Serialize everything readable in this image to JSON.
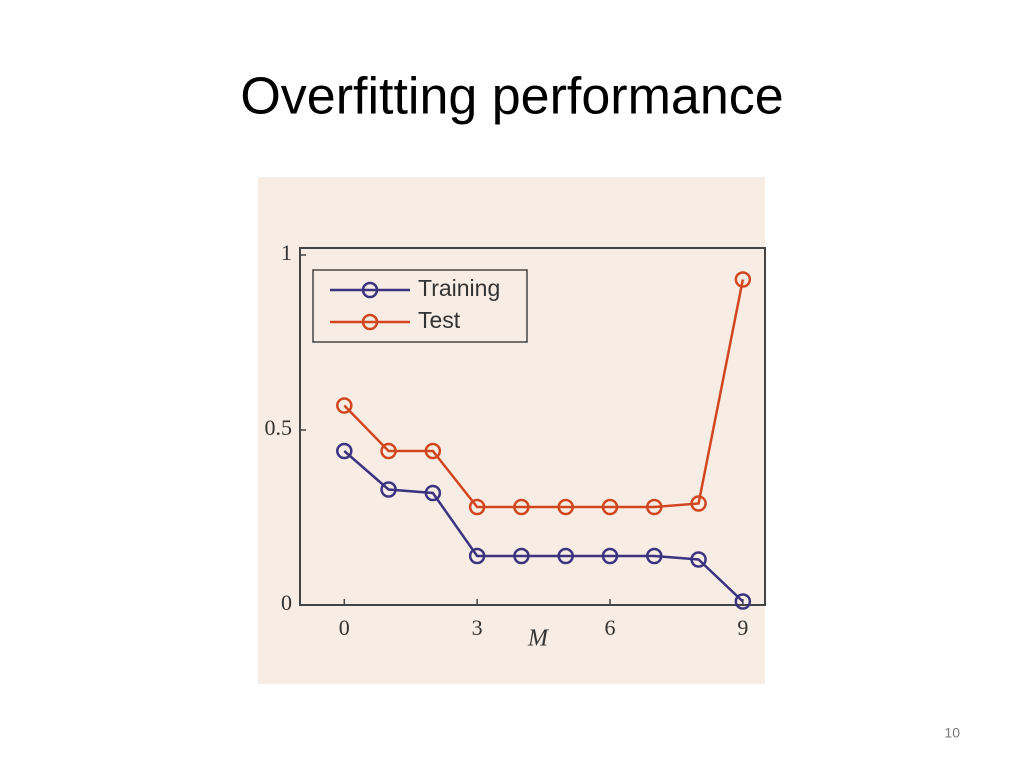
{
  "slide": {
    "title": "Overfitting performance",
    "page_number": "10"
  },
  "chart_data": {
    "type": "line",
    "x_label": "M",
    "x": [
      0,
      1,
      2,
      3,
      4,
      5,
      6,
      7,
      8,
      9
    ],
    "series": [
      {
        "name": "Training",
        "color": "#3b3380",
        "values": [
          0.44,
          0.33,
          0.32,
          0.14,
          0.14,
          0.14,
          0.14,
          0.14,
          0.13,
          0.01
        ]
      },
      {
        "name": "Test",
        "color": "#d2461f",
        "values": [
          0.57,
          0.44,
          0.44,
          0.28,
          0.28,
          0.28,
          0.28,
          0.28,
          0.29,
          0.93
        ]
      }
    ],
    "xlim": [
      -1,
      9.5
    ],
    "ylim": [
      0,
      1.02
    ],
    "xticks": [
      0,
      3,
      6,
      9
    ],
    "yticks": [
      0,
      0.5,
      1
    ],
    "grid": false,
    "legend": "upper-left"
  }
}
